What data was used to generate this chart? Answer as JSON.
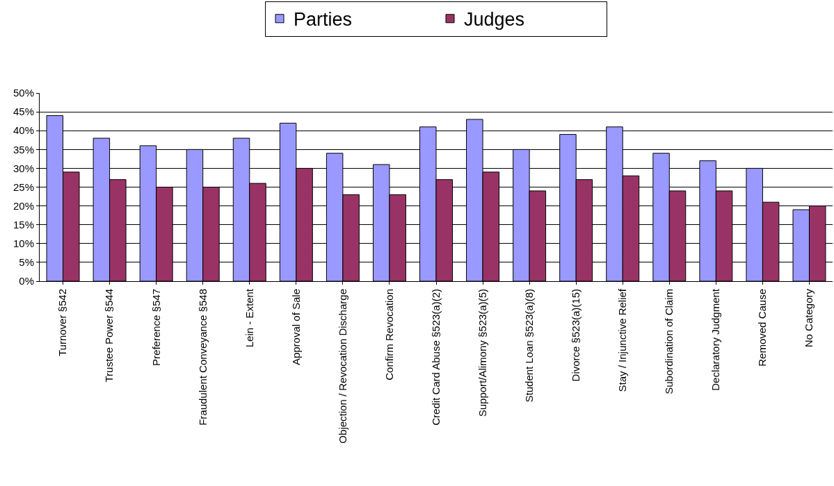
{
  "chart_data": {
    "type": "bar",
    "categories": [
      "Turnover §542",
      "Trustee Power §544",
      "Preference §547",
      "Fraudulent Conveyance §548",
      "Lein - Extent",
      "Approval of Sale",
      "Objection / Revocation Discharge",
      "Confirm Revocation",
      "Credit Card Abuse §523(a)(2)",
      "Support/Alimony §523(a)(5)",
      "Student Loan §523(a)(8)",
      "Divorce §523(a)(15)",
      "Stay / Injunctive Relief",
      "Subordination of Claim",
      "Declaratory Judgment",
      "Removed Cause",
      "No Category"
    ],
    "series": [
      {
        "name": "Parties",
        "color": "#9999ff",
        "values": [
          44,
          38,
          36,
          35,
          38,
          42,
          34,
          31,
          41,
          43,
          35,
          39,
          41,
          34,
          32,
          30,
          19
        ]
      },
      {
        "name": "Judges",
        "color": "#993366",
        "values": [
          29,
          27,
          25,
          25,
          26,
          30,
          23,
          23,
          27,
          29,
          24,
          27,
          28,
          24,
          24,
          21,
          20
        ]
      }
    ],
    "ylim": [
      0,
      50
    ],
    "yticks": [
      {
        "value": 0,
        "label": "0%"
      },
      {
        "value": 5,
        "label": "5%"
      },
      {
        "value": 10,
        "label": "10%"
      },
      {
        "value": 15,
        "label": "15%"
      },
      {
        "value": 20,
        "label": "20%"
      },
      {
        "value": 25,
        "label": "25%"
      },
      {
        "value": 30,
        "label": "30%"
      },
      {
        "value": 35,
        "label": "35%"
      },
      {
        "value": 40,
        "label": "40%"
      },
      {
        "value": 45,
        "label": "45%"
      },
      {
        "value": 50,
        "label": "50%"
      }
    ],
    "grid": "y",
    "legend": "top"
  }
}
